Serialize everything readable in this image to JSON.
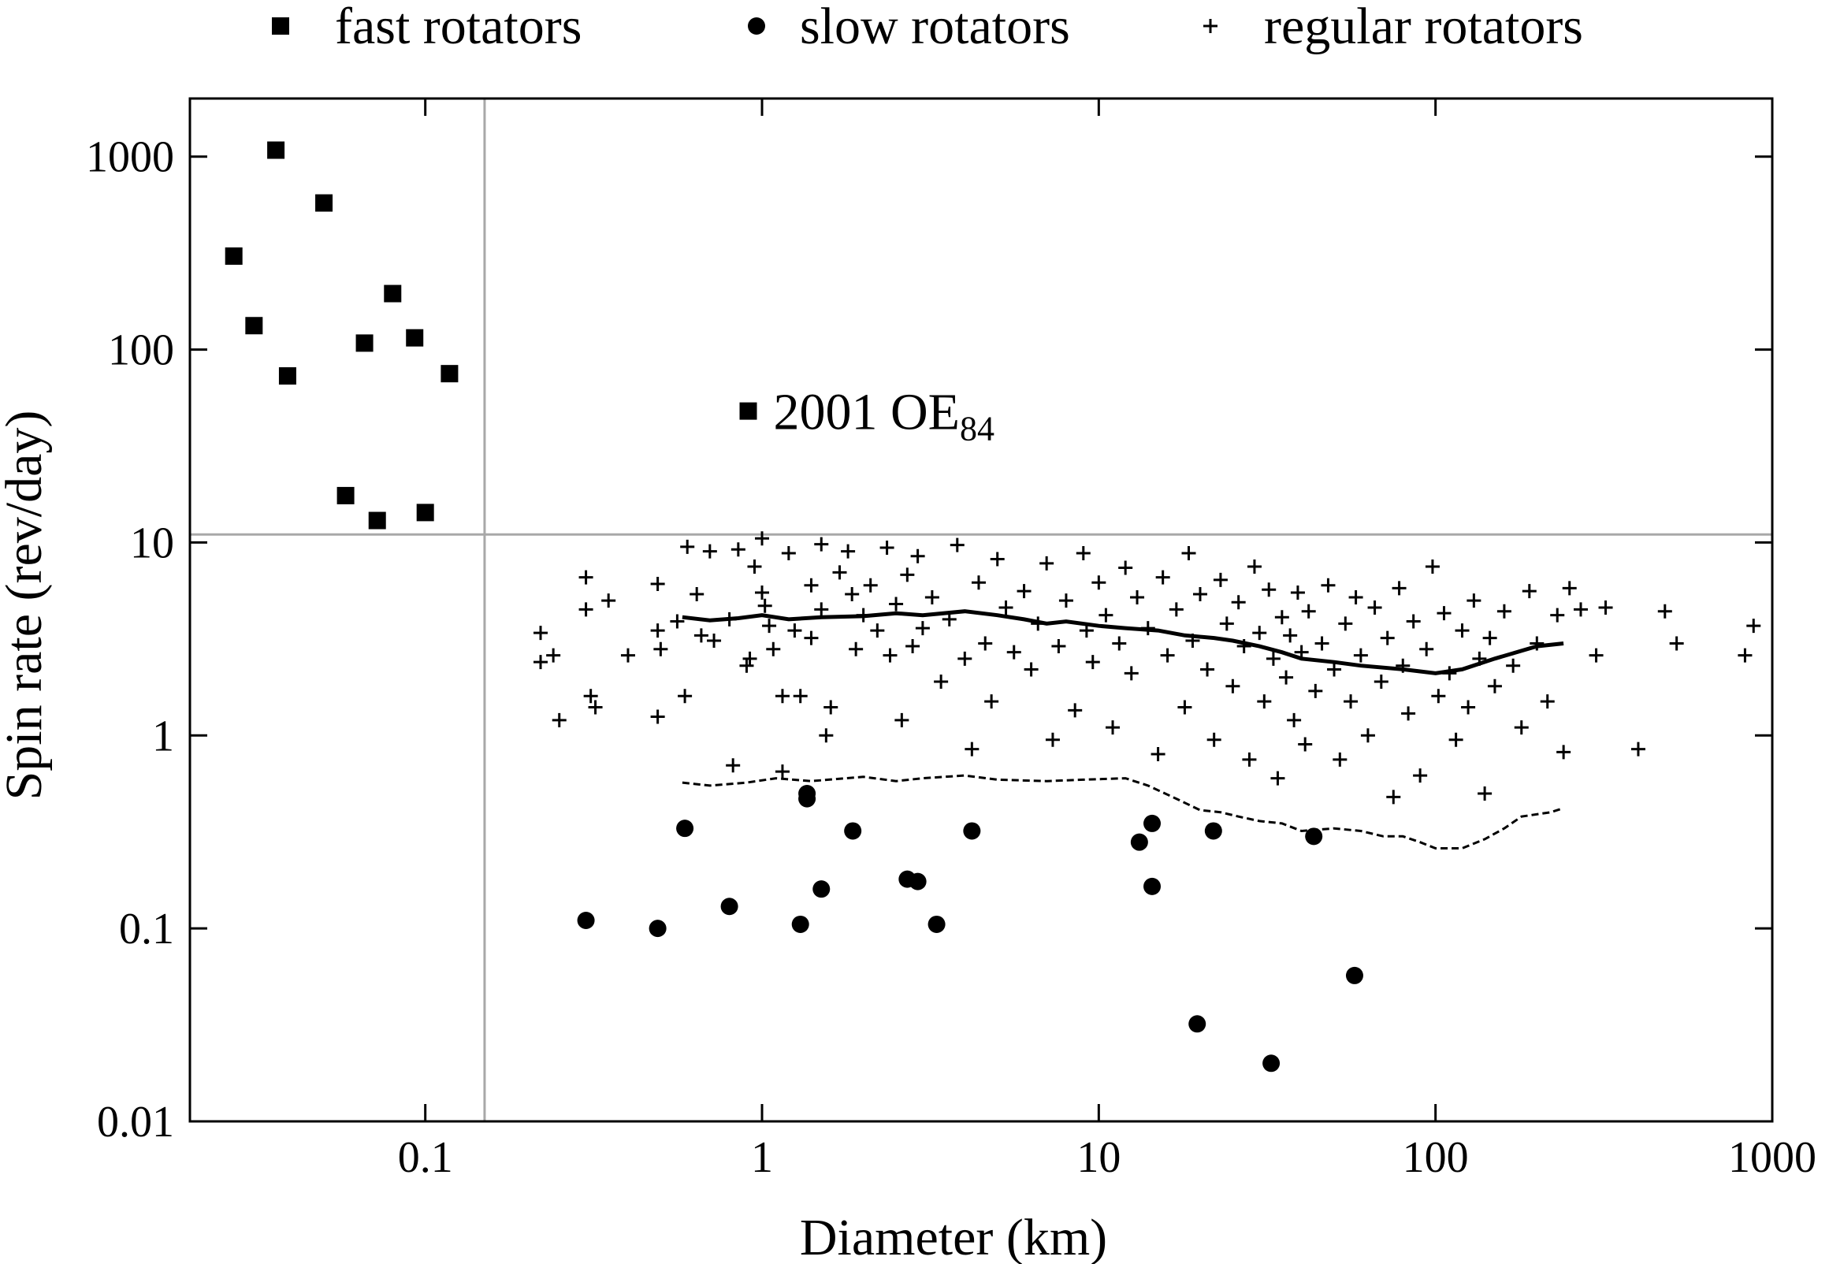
{
  "chart_data": {
    "type": "scatter",
    "title": "",
    "xlabel": "Diameter (km)",
    "ylabel": "Spin rate (rev/day)",
    "xscale": "log",
    "yscale": "log",
    "xlim": [
      0.02,
      1000
    ],
    "ylim": [
      0.01,
      2000
    ],
    "x_ticks": [
      {
        "value": 0.1,
        "label": "0.1"
      },
      {
        "value": 1,
        "label": "1"
      },
      {
        "value": 10,
        "label": "10"
      },
      {
        "value": 100,
        "label": "100"
      },
      {
        "value": 1000,
        "label": "1000"
      }
    ],
    "y_ticks": [
      {
        "value": 0.01,
        "label": "0.01"
      },
      {
        "value": 0.1,
        "label": "0.1"
      },
      {
        "value": 1,
        "label": "1"
      },
      {
        "value": 10,
        "label": "10"
      },
      {
        "value": 100,
        "label": "100"
      },
      {
        "value": 1000,
        "label": "1000"
      }
    ],
    "grid": false,
    "legend_position": "top",
    "reference_lines": [
      {
        "orientation": "vertical",
        "x": 0.15,
        "color": "#a8a8a8"
      },
      {
        "orientation": "horizontal",
        "y": 11,
        "color": "#a8a8a8"
      }
    ],
    "series": [
      {
        "name": "fast rotators",
        "marker": "square",
        "points": [
          [
            0.027,
            305
          ],
          [
            0.036,
            1080
          ],
          [
            0.031,
            133
          ],
          [
            0.039,
            73
          ],
          [
            0.05,
            575
          ],
          [
            0.058,
            17.5
          ],
          [
            0.066,
            108
          ],
          [
            0.072,
            13
          ],
          [
            0.08,
            195
          ],
          [
            0.093,
            115
          ],
          [
            0.1,
            14.3
          ],
          [
            0.118,
            75
          ],
          [
            0.91,
            48
          ]
        ]
      },
      {
        "name": "slow rotators",
        "marker": "circle",
        "points": [
          [
            0.3,
            0.11
          ],
          [
            0.49,
            0.1
          ],
          [
            0.59,
            0.33
          ],
          [
            0.8,
            0.13
          ],
          [
            1.3,
            0.105
          ],
          [
            1.36,
            0.5
          ],
          [
            1.36,
            0.47
          ],
          [
            1.5,
            0.16
          ],
          [
            1.86,
            0.32
          ],
          [
            2.7,
            0.18
          ],
          [
            2.9,
            0.175
          ],
          [
            3.3,
            0.105
          ],
          [
            4.2,
            0.32
          ],
          [
            13.2,
            0.28
          ],
          [
            14.4,
            0.35
          ],
          [
            14.4,
            0.165
          ],
          [
            19.6,
            0.032
          ],
          [
            21.9,
            0.32
          ],
          [
            32.5,
            0.02
          ],
          [
            43.5,
            0.3
          ],
          [
            57.5,
            0.057
          ]
        ]
      },
      {
        "name": "regular rotators",
        "marker": "plus",
        "points": [
          [
            0.22,
            3.4
          ],
          [
            0.22,
            2.4
          ],
          [
            0.24,
            2.6
          ],
          [
            0.25,
            1.2
          ],
          [
            0.3,
            6.6
          ],
          [
            0.3,
            4.5
          ],
          [
            0.31,
            1.6
          ],
          [
            0.32,
            1.4
          ],
          [
            0.35,
            5.0
          ],
          [
            0.4,
            2.6
          ],
          [
            0.49,
            6.1
          ],
          [
            0.49,
            3.5
          ],
          [
            0.49,
            1.25
          ],
          [
            0.5,
            2.8
          ],
          [
            0.56,
            3.9
          ],
          [
            0.59,
            1.6
          ],
          [
            0.6,
            9.5
          ],
          [
            0.64,
            5.4
          ],
          [
            0.66,
            3.3
          ],
          [
            0.7,
            9.0
          ],
          [
            0.72,
            3.1
          ],
          [
            0.8,
            4.0
          ],
          [
            0.82,
            0.7
          ],
          [
            0.85,
            9.2
          ],
          [
            0.9,
            2.3
          ],
          [
            0.92,
            2.5
          ],
          [
            0.95,
            7.5
          ],
          [
            1.0,
            10.5
          ],
          [
            1.0,
            5.5
          ],
          [
            1.02,
            4.7
          ],
          [
            1.05,
            3.7
          ],
          [
            1.08,
            2.8
          ],
          [
            1.15,
            1.6
          ],
          [
            1.15,
            0.65
          ],
          [
            1.2,
            8.8
          ],
          [
            1.25,
            3.5
          ],
          [
            1.3,
            1.6
          ],
          [
            1.4,
            6.0
          ],
          [
            1.4,
            3.2
          ],
          [
            1.5,
            9.8
          ],
          [
            1.5,
            4.5
          ],
          [
            1.55,
            1.0
          ],
          [
            1.6,
            1.4
          ],
          [
            1.7,
            7.0
          ],
          [
            1.8,
            9.0
          ],
          [
            1.85,
            5.4
          ],
          [
            1.9,
            2.8
          ],
          [
            2.0,
            4.2
          ],
          [
            2.1,
            6.0
          ],
          [
            2.2,
            3.5
          ],
          [
            2.35,
            9.4
          ],
          [
            2.4,
            2.6
          ],
          [
            2.5,
            4.8
          ],
          [
            2.6,
            1.2
          ],
          [
            2.7,
            6.8
          ],
          [
            2.8,
            2.9
          ],
          [
            2.9,
            8.5
          ],
          [
            3.0,
            3.6
          ],
          [
            3.2,
            5.2
          ],
          [
            3.4,
            1.9
          ],
          [
            3.6,
            4.0
          ],
          [
            3.8,
            9.7
          ],
          [
            4.0,
            2.5
          ],
          [
            4.2,
            0.85
          ],
          [
            4.4,
            6.2
          ],
          [
            4.6,
            3.0
          ],
          [
            4.8,
            1.5
          ],
          [
            5.0,
            8.2
          ],
          [
            5.3,
            4.6
          ],
          [
            5.6,
            2.7
          ],
          [
            6.0,
            5.6
          ],
          [
            6.3,
            2.2
          ],
          [
            6.6,
            3.8
          ],
          [
            7.0,
            7.8
          ],
          [
            7.3,
            0.95
          ],
          [
            7.6,
            2.9
          ],
          [
            8.0,
            5.0
          ],
          [
            8.5,
            1.35
          ],
          [
            9.0,
            8.8
          ],
          [
            9.2,
            3.5
          ],
          [
            9.6,
            2.4
          ],
          [
            10.0,
            6.2
          ],
          [
            10.5,
            4.2
          ],
          [
            11.0,
            1.1
          ],
          [
            11.5,
            3.0
          ],
          [
            12.0,
            7.4
          ],
          [
            12.5,
            2.1
          ],
          [
            13.0,
            5.2
          ],
          [
            14.0,
            3.6
          ],
          [
            15.0,
            0.8
          ],
          [
            15.5,
            6.6
          ],
          [
            16.0,
            2.6
          ],
          [
            17.0,
            4.5
          ],
          [
            18.0,
            1.4
          ],
          [
            18.5,
            8.8
          ],
          [
            19.0,
            3.1
          ],
          [
            20.0,
            5.4
          ],
          [
            21.0,
            2.2
          ],
          [
            22.0,
            0.95
          ],
          [
            23.0,
            6.4
          ],
          [
            24.0,
            3.8
          ],
          [
            25.0,
            1.8
          ],
          [
            26.0,
            4.9
          ],
          [
            27.0,
            2.9
          ],
          [
            28.0,
            0.75
          ],
          [
            29.0,
            7.5
          ],
          [
            30.0,
            3.4
          ],
          [
            31.0,
            1.5
          ],
          [
            32.0,
            5.7
          ],
          [
            33.0,
            2.5
          ],
          [
            34.0,
            0.6
          ],
          [
            35.0,
            4.1
          ],
          [
            36.0,
            2.0
          ],
          [
            37.0,
            3.3
          ],
          [
            38.0,
            1.2
          ],
          [
            39.0,
            5.5
          ],
          [
            40.0,
            2.7
          ],
          [
            41.0,
            0.9
          ],
          [
            42.0,
            4.4
          ],
          [
            44.0,
            1.7
          ],
          [
            46.0,
            3.0
          ],
          [
            48.0,
            6.0
          ],
          [
            50.0,
            2.2
          ],
          [
            52.0,
            0.75
          ],
          [
            54.0,
            3.8
          ],
          [
            56.0,
            1.5
          ],
          [
            58.0,
            5.2
          ],
          [
            60.0,
            2.6
          ],
          [
            63.0,
            1.0
          ],
          [
            66.0,
            4.6
          ],
          [
            69.0,
            1.9
          ],
          [
            72.0,
            3.2
          ],
          [
            75.0,
            0.48
          ],
          [
            78.0,
            5.8
          ],
          [
            80.0,
            2.3
          ],
          [
            83.0,
            1.3
          ],
          [
            86.0,
            3.9
          ],
          [
            90.0,
            0.62
          ],
          [
            94.0,
            2.8
          ],
          [
            98.0,
            7.5
          ],
          [
            102.0,
            1.6
          ],
          [
            106.0,
            4.3
          ],
          [
            110.0,
            2.1
          ],
          [
            115.0,
            0.95
          ],
          [
            120.0,
            3.5
          ],
          [
            125.0,
            1.4
          ],
          [
            130.0,
            5.0
          ],
          [
            135.0,
            2.5
          ],
          [
            140.0,
            0.5
          ],
          [
            145.0,
            3.2
          ],
          [
            150.0,
            1.8
          ],
          [
            160.0,
            4.4
          ],
          [
            170.0,
            2.3
          ],
          [
            180.0,
            1.1
          ],
          [
            190.0,
            5.6
          ],
          [
            200.0,
            3.0
          ],
          [
            215.0,
            1.5
          ],
          [
            230.0,
            4.2
          ],
          [
            240.0,
            0.82
          ],
          [
            250.0,
            5.8
          ],
          [
            270.0,
            4.5
          ],
          [
            300.0,
            2.6
          ],
          [
            320.0,
            4.6
          ],
          [
            400.0,
            0.85
          ],
          [
            480.0,
            4.4
          ],
          [
            520.0,
            3.0
          ],
          [
            830.0,
            2.6
          ],
          [
            880.0,
            3.7
          ]
        ]
      },
      {
        "name": "",
        "marker": "line",
        "line_style": "solid",
        "points": [
          [
            0.58,
            4.1
          ],
          [
            0.7,
            3.95
          ],
          [
            0.85,
            4.05
          ],
          [
            1.0,
            4.2
          ],
          [
            1.2,
            4.0
          ],
          [
            1.5,
            4.1
          ],
          [
            2.0,
            4.15
          ],
          [
            2.5,
            4.3
          ],
          [
            3.0,
            4.2
          ],
          [
            4.0,
            4.4
          ],
          [
            5.0,
            4.2
          ],
          [
            6.0,
            4.0
          ],
          [
            7.0,
            3.8
          ],
          [
            8.0,
            3.9
          ],
          [
            10.0,
            3.7
          ],
          [
            12.0,
            3.6
          ],
          [
            15.0,
            3.5
          ],
          [
            18.0,
            3.3
          ],
          [
            22.0,
            3.2
          ],
          [
            25.0,
            3.1
          ],
          [
            30.0,
            2.9
          ],
          [
            35.0,
            2.7
          ],
          [
            40.0,
            2.5
          ],
          [
            50.0,
            2.4
          ],
          [
            60.0,
            2.3
          ],
          [
            80.0,
            2.2
          ],
          [
            100.0,
            2.1
          ],
          [
            120.0,
            2.2
          ],
          [
            150.0,
            2.5
          ],
          [
            200.0,
            2.9
          ],
          [
            240.0,
            3.0
          ]
        ]
      },
      {
        "name": "",
        "marker": "line",
        "line_style": "dashed",
        "points": [
          [
            0.58,
            0.57
          ],
          [
            0.7,
            0.55
          ],
          [
            0.9,
            0.57
          ],
          [
            1.1,
            0.6
          ],
          [
            1.4,
            0.58
          ],
          [
            2.0,
            0.61
          ],
          [
            2.5,
            0.58
          ],
          [
            3.0,
            0.6
          ],
          [
            4.0,
            0.62
          ],
          [
            5.0,
            0.59
          ],
          [
            7.0,
            0.58
          ],
          [
            9.0,
            0.59
          ],
          [
            12.0,
            0.6
          ],
          [
            14.0,
            0.55
          ],
          [
            17.0,
            0.47
          ],
          [
            20.0,
            0.41
          ],
          [
            23.0,
            0.4
          ],
          [
            26.0,
            0.38
          ],
          [
            30.0,
            0.36
          ],
          [
            35.0,
            0.35
          ],
          [
            40.0,
            0.32
          ],
          [
            50.0,
            0.33
          ],
          [
            60.0,
            0.32
          ],
          [
            70.0,
            0.3
          ],
          [
            80.0,
            0.3
          ],
          [
            90.0,
            0.28
          ],
          [
            100.0,
            0.26
          ],
          [
            120.0,
            0.26
          ],
          [
            140.0,
            0.29
          ],
          [
            160.0,
            0.33
          ],
          [
            180.0,
            0.38
          ],
          [
            220.0,
            0.4
          ],
          [
            240.0,
            0.42
          ]
        ]
      }
    ],
    "annotations": [
      {
        "base": "2001 OE",
        "subscript": "84",
        "x": 0.91,
        "y": 48
      }
    ]
  }
}
